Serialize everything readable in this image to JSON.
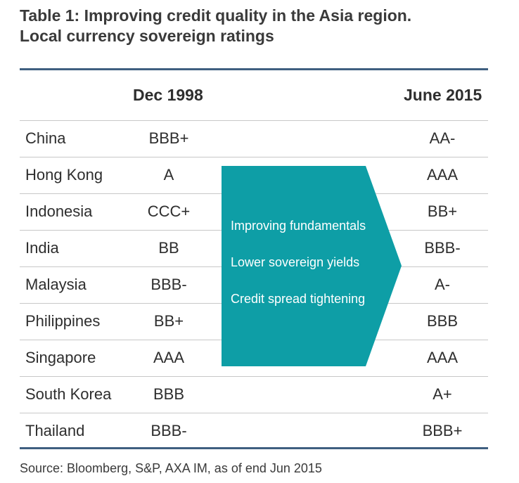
{
  "title": {
    "line1": "Table 1: Improving credit quality in the Asia region.",
    "line2": "Local currency sovereign ratings"
  },
  "columns": {
    "dec1998": "Dec 1998",
    "jun2015": "June 2015"
  },
  "rows": [
    {
      "country": "China",
      "dec1998": "BBB+",
      "jun2015": "AA-"
    },
    {
      "country": "Hong Kong",
      "dec1998": "A",
      "jun2015": "AAA"
    },
    {
      "country": "Indonesia",
      "dec1998": "CCC+",
      "jun2015": "BB+"
    },
    {
      "country": "India",
      "dec1998": "BB",
      "jun2015": "BBB-"
    },
    {
      "country": "Malaysia",
      "dec1998": "BBB-",
      "jun2015": "A-"
    },
    {
      "country": "Philippines",
      "dec1998": "BB+",
      "jun2015": "BBB"
    },
    {
      "country": "Singapore",
      "dec1998": "AAA",
      "jun2015": "AAA"
    },
    {
      "country": "South Korea",
      "dec1998": "BBB",
      "jun2015": "A+"
    },
    {
      "country": "Thailand",
      "dec1998": "BBB-",
      "jun2015": "BBB+"
    }
  ],
  "arrow": {
    "color": "#0e9ea6",
    "lines": [
      "Improving fundamentals",
      "Lower sovereign yields",
      "Credit spread tightening"
    ]
  },
  "rule_color": "#3f5f80",
  "source": "Source: Bloomberg, S&P, AXA IM, as of end Jun 2015"
}
